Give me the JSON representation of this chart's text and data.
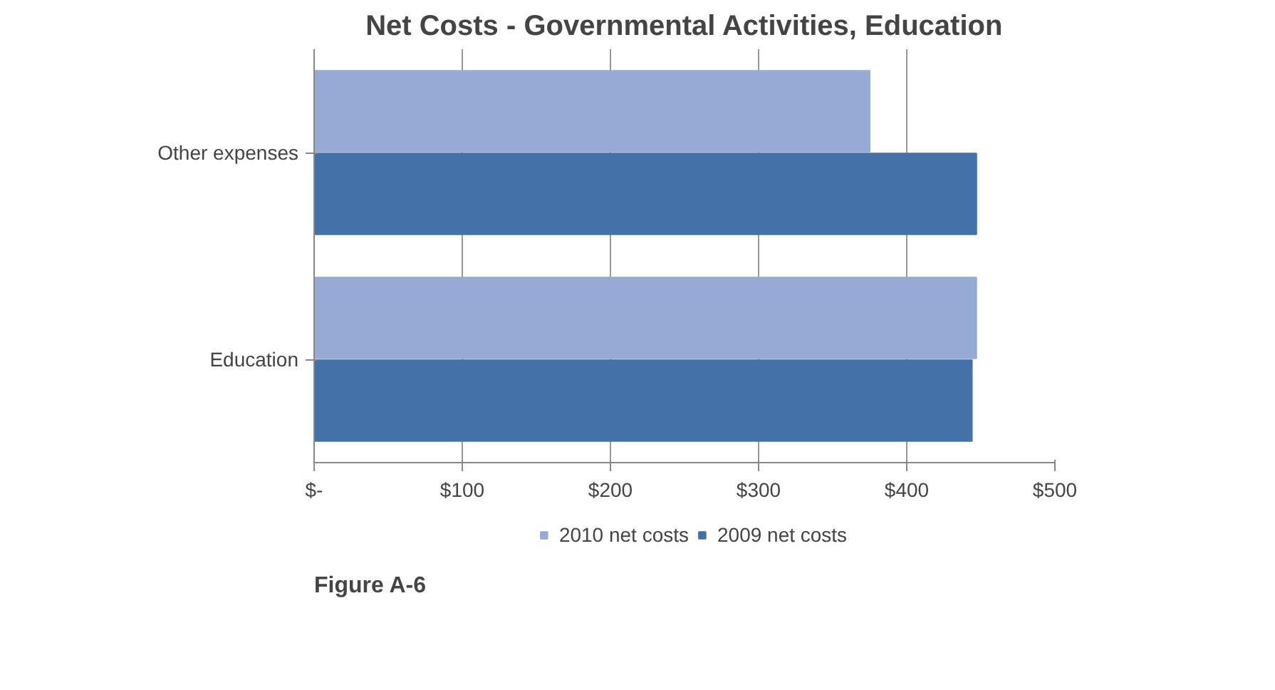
{
  "chart_data": {
    "type": "bar",
    "orientation": "horizontal",
    "title": "Net Costs - Governmental Activities, Education",
    "categories": [
      "Other expenses",
      "Education"
    ],
    "series": [
      {
        "name": "2010 net costs",
        "color": "#95abd6",
        "values": [
          375,
          447
        ]
      },
      {
        "name": "2009 net costs",
        "color": "#4472a8",
        "values": [
          447,
          444
        ]
      }
    ],
    "xlim": [
      0,
      500
    ],
    "xticks": [
      {
        "value": 0,
        "label": "$-"
      },
      {
        "value": 100,
        "label": "$100"
      },
      {
        "value": 200,
        "label": "$200"
      },
      {
        "value": 300,
        "label": "$300"
      },
      {
        "value": 400,
        "label": "$400"
      },
      {
        "value": 500,
        "label": "$500"
      }
    ],
    "grid": "x",
    "legend": "bottom",
    "annotations": [
      "Figure A-6"
    ]
  }
}
